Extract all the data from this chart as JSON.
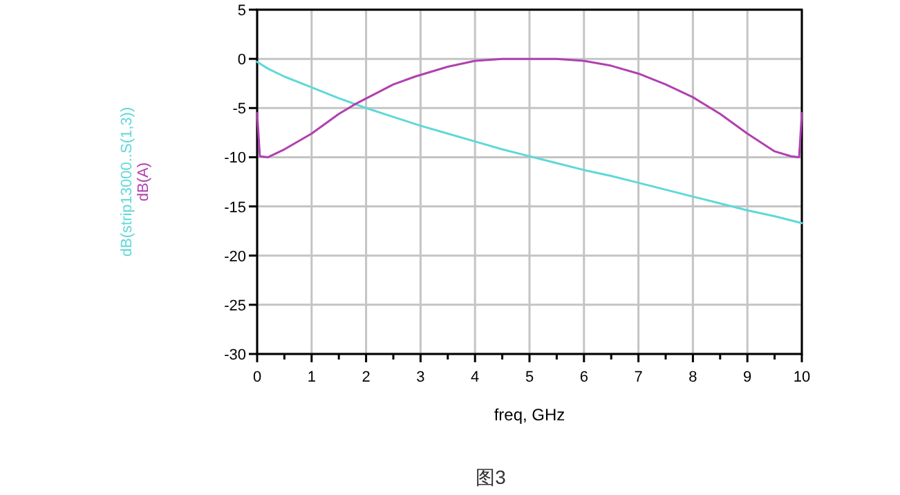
{
  "chart_data": {
    "type": "line",
    "xlabel": "freq, GHz",
    "annotations": [
      "图3"
    ],
    "series": [
      {
        "name": "dB(strip13000..S(1,3))",
        "color": "#5fd8d8",
        "x": [
          0,
          0.2,
          0.5,
          1,
          1.5,
          2,
          2.5,
          3,
          3.5,
          4,
          4.5,
          5,
          5.5,
          6,
          6.5,
          7,
          7.5,
          8,
          8.5,
          9,
          9.5,
          10
        ],
        "values": [
          -0.3,
          -1.0,
          -1.8,
          -2.9,
          -4.0,
          -5.0,
          -5.9,
          -6.8,
          -7.6,
          -8.4,
          -9.2,
          -9.9,
          -10.6,
          -11.3,
          -11.9,
          -12.6,
          -13.3,
          -14.0,
          -14.7,
          -15.4,
          -16.0,
          -16.7
        ]
      },
      {
        "name": "dB(A)",
        "color": "#b040b0",
        "x": [
          0,
          0.05,
          0.2,
          0.5,
          1,
          1.5,
          1.8,
          2.5,
          2.9,
          3.5,
          4,
          4.5,
          5,
          5.5,
          6,
          6.5,
          7,
          7.5,
          8,
          8.5,
          9,
          9.5,
          9.8,
          9.95,
          10
        ],
        "values": [
          -5.5,
          -9.9,
          -10.0,
          -9.2,
          -7.6,
          -5.6,
          -4.6,
          -2.6,
          -1.8,
          -0.8,
          -0.2,
          0,
          0,
          0,
          -0.2,
          -0.7,
          -1.5,
          -2.6,
          -3.9,
          -5.6,
          -7.6,
          -9.4,
          -9.9,
          -10.0,
          -5.5
        ]
      }
    ],
    "xlim": [
      0,
      10
    ],
    "ylim": [
      -30,
      5
    ],
    "xticks": [
      0,
      {
        "value": 0.5,
        "label": null
      },
      1,
      {
        "value": 1.5,
        "label": null
      },
      2,
      {
        "value": 2.5,
        "label": null
      },
      3,
      {
        "value": 3.5,
        "label": null
      },
      4,
      {
        "value": 4.5,
        "label": null
      },
      5,
      {
        "value": 5.5,
        "label": null
      },
      6,
      {
        "value": 6.5,
        "label": null
      },
      7,
      {
        "value": 7.5,
        "label": null
      },
      8,
      {
        "value": 8.5,
        "label": null
      },
      9,
      {
        "value": 9.5,
        "label": null
      },
      10
    ],
    "yticks": [
      -30,
      -25,
      -20,
      -15,
      -10,
      -5,
      0,
      5
    ],
    "grid": true,
    "line_style": "solid"
  }
}
